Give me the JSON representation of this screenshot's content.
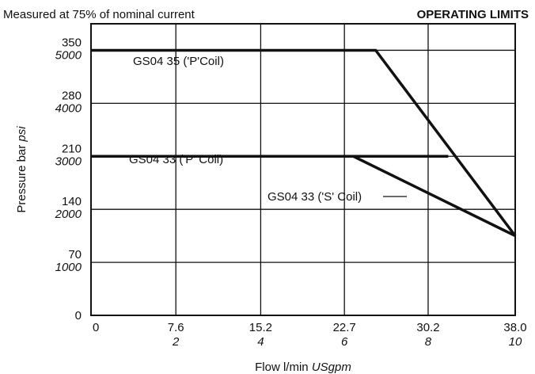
{
  "header": {
    "note": "Measured at 75% of nominal current",
    "title": "OPERATING LIMITS"
  },
  "chart_data": {
    "type": "line",
    "title": "OPERATING LIMITS",
    "subtitle": "Measured at 75% of nominal current",
    "xlabel": "Flow l/min",
    "xlabel_unit": "USgpm",
    "ylabel": "Pressure bar",
    "ylabel_unit": "psi",
    "xlim": [
      0,
      38.0
    ],
    "ylim": [
      0,
      385
    ],
    "grid": true,
    "x_ticks": [
      {
        "value": 0,
        "primary": "0",
        "secondary": ""
      },
      {
        "value": 7.6,
        "primary": "7.6",
        "secondary": "2"
      },
      {
        "value": 15.2,
        "primary": "15.2",
        "secondary": "4"
      },
      {
        "value": 22.7,
        "primary": "22.7",
        "secondary": "6"
      },
      {
        "value": 30.2,
        "primary": "30.2",
        "secondary": "8"
      },
      {
        "value": 38.0,
        "primary": "38.0",
        "secondary": "10"
      }
    ],
    "y_ticks": [
      {
        "value": 0,
        "primary": "0",
        "secondary": ""
      },
      {
        "value": 70,
        "primary": "70",
        "secondary": "1000"
      },
      {
        "value": 140,
        "primary": "140",
        "secondary": "2000"
      },
      {
        "value": 210,
        "primary": "210",
        "secondary": "3000"
      },
      {
        "value": 280,
        "primary": "280",
        "secondary": "4000"
      },
      {
        "value": 350,
        "primary": "350",
        "secondary": "5000"
      }
    ],
    "series": [
      {
        "name": "GS04 35 ('P'Coil)",
        "x": [
          0,
          25.5,
          38.0
        ],
        "y": [
          350,
          350,
          105
        ]
      },
      {
        "name": "GS04 33 ('P' Coil)",
        "x": [
          0,
          32.0
        ],
        "y": [
          210,
          210
        ]
      },
      {
        "name": "GS04 33 ('S' Coil)",
        "x": [
          0,
          23.5,
          38.0
        ],
        "y": [
          210,
          210,
          105
        ]
      }
    ]
  }
}
